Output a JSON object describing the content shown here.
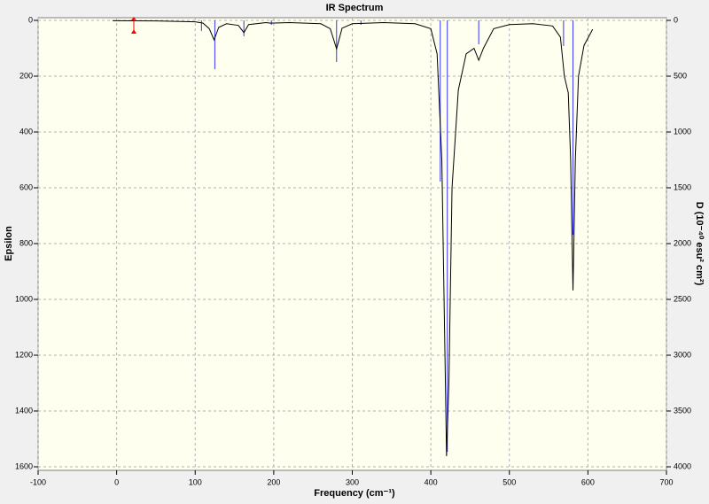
{
  "chart_data": {
    "type": "line",
    "title": "IR Spectrum",
    "x_label": "Frequency (cm⁻¹)",
    "y_label": "Epsilon",
    "y2_label": "D (10⁻⁴⁰ esu² cm²)",
    "xlim": [
      -100,
      700
    ],
    "xticks": [
      -100,
      0,
      100,
      200,
      300,
      400,
      500,
      600,
      700
    ],
    "ylim": [
      1600,
      0
    ],
    "yticks": [
      0,
      200,
      400,
      600,
      800,
      1000,
      1200,
      1400,
      1600
    ],
    "y2lim": [
      4000,
      0
    ],
    "y2ticks": [
      0,
      500,
      1000,
      1500,
      2000,
      2500,
      3000,
      3500,
      4000
    ],
    "grid": true,
    "series": [
      {
        "type": "line",
        "color": "#000000",
        "x": [
          -5,
          50,
          100,
          110,
          118,
          124,
          130,
          140,
          155,
          162,
          168,
          190,
          196,
          220,
          260,
          272,
          280,
          287,
          300,
          340,
          380,
          400,
          408,
          414,
          418,
          420,
          423,
          427,
          435,
          445,
          455,
          461,
          467,
          480,
          500,
          530,
          555,
          565,
          570,
          575,
          578,
          581,
          584,
          588,
          595,
          606
        ],
        "values": [
          1,
          2,
          5,
          10,
          30,
          70,
          25,
          12,
          18,
          44,
          15,
          8,
          10,
          8,
          12,
          30,
          102,
          28,
          12,
          8,
          12,
          30,
          120,
          500,
          1200,
          1562,
          1300,
          600,
          250,
          120,
          100,
          143,
          100,
          30,
          15,
          12,
          20,
          60,
          200,
          260,
          500,
          968,
          500,
          200,
          90,
          32
        ]
      },
      {
        "type": "stick",
        "color": "#3333ff",
        "axis": "y2",
        "x": [
          108,
          125,
          162,
          197,
          280,
          311,
          412,
          421,
          461,
          569,
          581
        ],
        "values": [
          95,
          437,
          143,
          40,
          373,
          40,
          1444,
          3865,
          214,
          230,
          1921
        ]
      }
    ]
  }
}
